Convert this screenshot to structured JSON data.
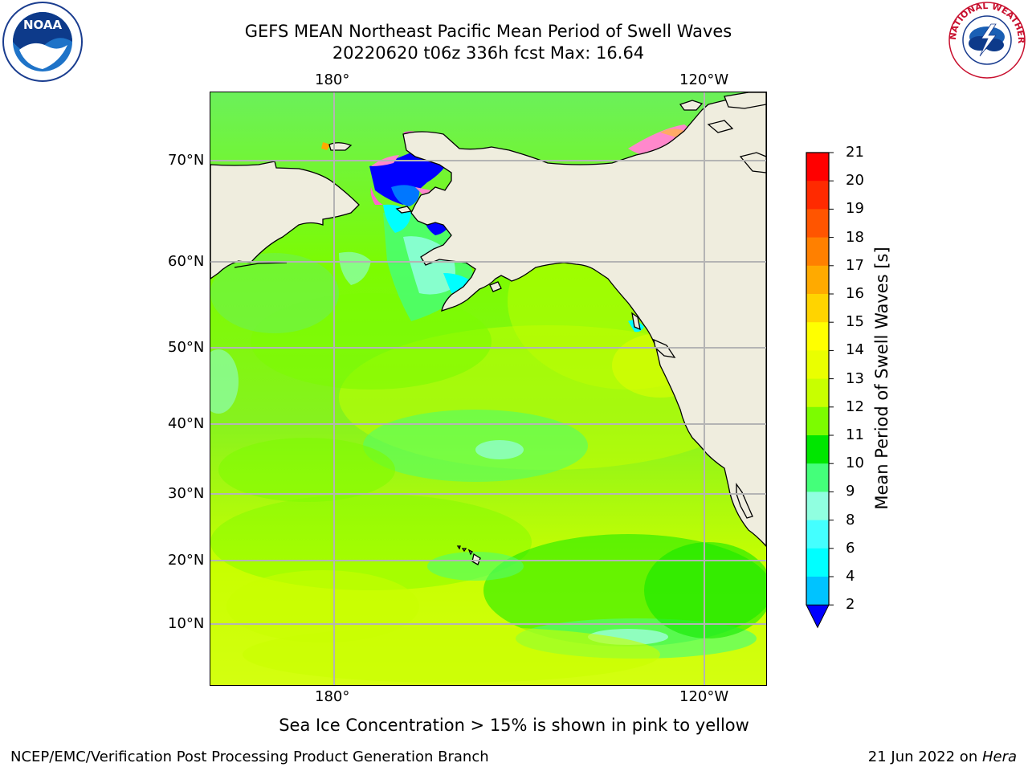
{
  "header": {
    "title_line1": "GEFS MEAN Northeast Pacific Mean Period of Swell Waves",
    "title_line2": "20220620 t06z 336h fcst   Max: 16.64"
  },
  "map": {
    "top_lon_labels": [
      "180°",
      "120°W"
    ],
    "bottom_lon_labels": [
      "180°",
      "120°W"
    ],
    "lat_labels": [
      "70°N",
      "60°N",
      "50°N",
      "40°N",
      "30°N",
      "20°N",
      "10°N"
    ],
    "region": "Northeast Pacific"
  },
  "colorbar": {
    "title": "Mean Period of Swell Waves [s]",
    "levels": [
      "21",
      "20",
      "19",
      "18",
      "17",
      "16",
      "15",
      "14",
      "13",
      "12",
      "11",
      "10",
      "9",
      "8",
      "6",
      "4",
      "2"
    ],
    "colors": [
      "#ff0000",
      "#ff2a00",
      "#ff5500",
      "#ff8000",
      "#ffaa00",
      "#ffd400",
      "#ffff00",
      "#eaff00",
      "#c8ff00",
      "#7cfc00",
      "#00e600",
      "#44ff7a",
      "#90ffe0",
      "#44ffff",
      "#00ffff",
      "#00c3ff",
      "#0077ff"
    ],
    "under_color": "#0000ff"
  },
  "colors": {
    "land": "#efedde",
    "grid": "#b4b4b4"
  },
  "logos": {
    "left": "NOAA",
    "right": "NATIONAL WEATHER SERVICE"
  },
  "note": "Sea Ice Concentration > 15% is shown in pink to yellow",
  "footer": {
    "left": "NCEP/EMC/Verification Post Processing Product Generation Branch",
    "right_date": "21 Jun 2022 on ",
    "right_host": "Hera"
  }
}
